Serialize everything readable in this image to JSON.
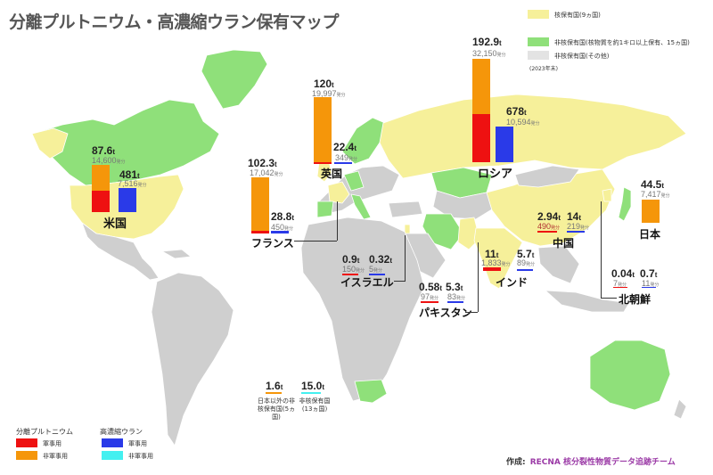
{
  "title": "分離プルトニウム・高濃縮ウラン保有マップ",
  "legend_status": {
    "items": [
      {
        "label": "核保有国(9ヵ国)",
        "color": "#f6f09a"
      },
      {
        "label": "非核保有国(核物質を約1キロ以上保有、15ヵ国)",
        "color": "#8fe07a"
      },
      {
        "label": "非核保有国(その他)",
        "color": "#e3e3e3"
      }
    ],
    "note": "(2023年末)"
  },
  "colors": {
    "pu_military": "#ee1111",
    "pu_civil": "#f5960a",
    "heu_military": "#2a3ae8",
    "heu_civil": "#44f0f0",
    "nuclear_state": "#f6f09a",
    "non_nuclear_holder": "#8fe07a",
    "other": "#cfcfcf"
  },
  "units": {
    "ton": "t",
    "warhead": "発分"
  },
  "countries": {
    "russia": {
      "name": "ロシア",
      "pu_amount": "192.9",
      "pu_warheads": "32,150",
      "heu_amount": "678",
      "heu_warheads": "10,594"
    },
    "uk": {
      "name": "英国",
      "pu_amount": "120",
      "pu_warheads": "19,997",
      "heu_amount": "22.4",
      "heu_warheads": "349"
    },
    "france": {
      "name": "フランス",
      "pu_amount": "102.3",
      "pu_warheads": "17,042",
      "heu_amount": "28.8",
      "heu_warheads": "450"
    },
    "usa": {
      "name": "米国",
      "pu_amount": "87.6",
      "pu_warheads": "14,600",
      "heu_amount": "481",
      "heu_warheads": "7,516"
    },
    "japan": {
      "name": "日本",
      "pu_amount": "44.5",
      "pu_warheads": "7,417"
    },
    "china": {
      "name": "中国",
      "pu_amount": "2.94",
      "pu_warheads": "490",
      "heu_amount": "14",
      "heu_warheads": "219"
    },
    "israel": {
      "name": "イスラエル",
      "pu_amount": "0.9",
      "pu_warheads": "150",
      "heu_amount": "0.32",
      "heu_warheads": "5"
    },
    "pakistan": {
      "name": "パキスタン",
      "pu_amount": "0.58",
      "pu_warheads": "97",
      "heu_amount": "5.3",
      "heu_warheads": "83"
    },
    "india": {
      "name": "インド",
      "pu_amount": "11",
      "pu_warheads": "1,833",
      "heu_amount": "5.7",
      "heu_warheads": "89"
    },
    "north_korea": {
      "name": "北朝鮮",
      "pu_amount": "0.04",
      "pu_warheads": "7",
      "heu_amount": "0.7",
      "heu_warheads": "11"
    }
  },
  "others": {
    "pu": {
      "amount": "1.6",
      "caption": "日本以外の非核保有国(5ヵ国)"
    },
    "heu": {
      "amount": "15.0",
      "caption": "非核保有国(13ヵ国)"
    }
  },
  "legend_material": {
    "pu_title": "分離プルトニウム",
    "heu_title": "高濃縮ウラン",
    "military": "軍事用",
    "civil": "非軍事用"
  },
  "credit": {
    "label": "作成:",
    "org": "RECNA 核分裂性物質データ追跡チーム"
  }
}
